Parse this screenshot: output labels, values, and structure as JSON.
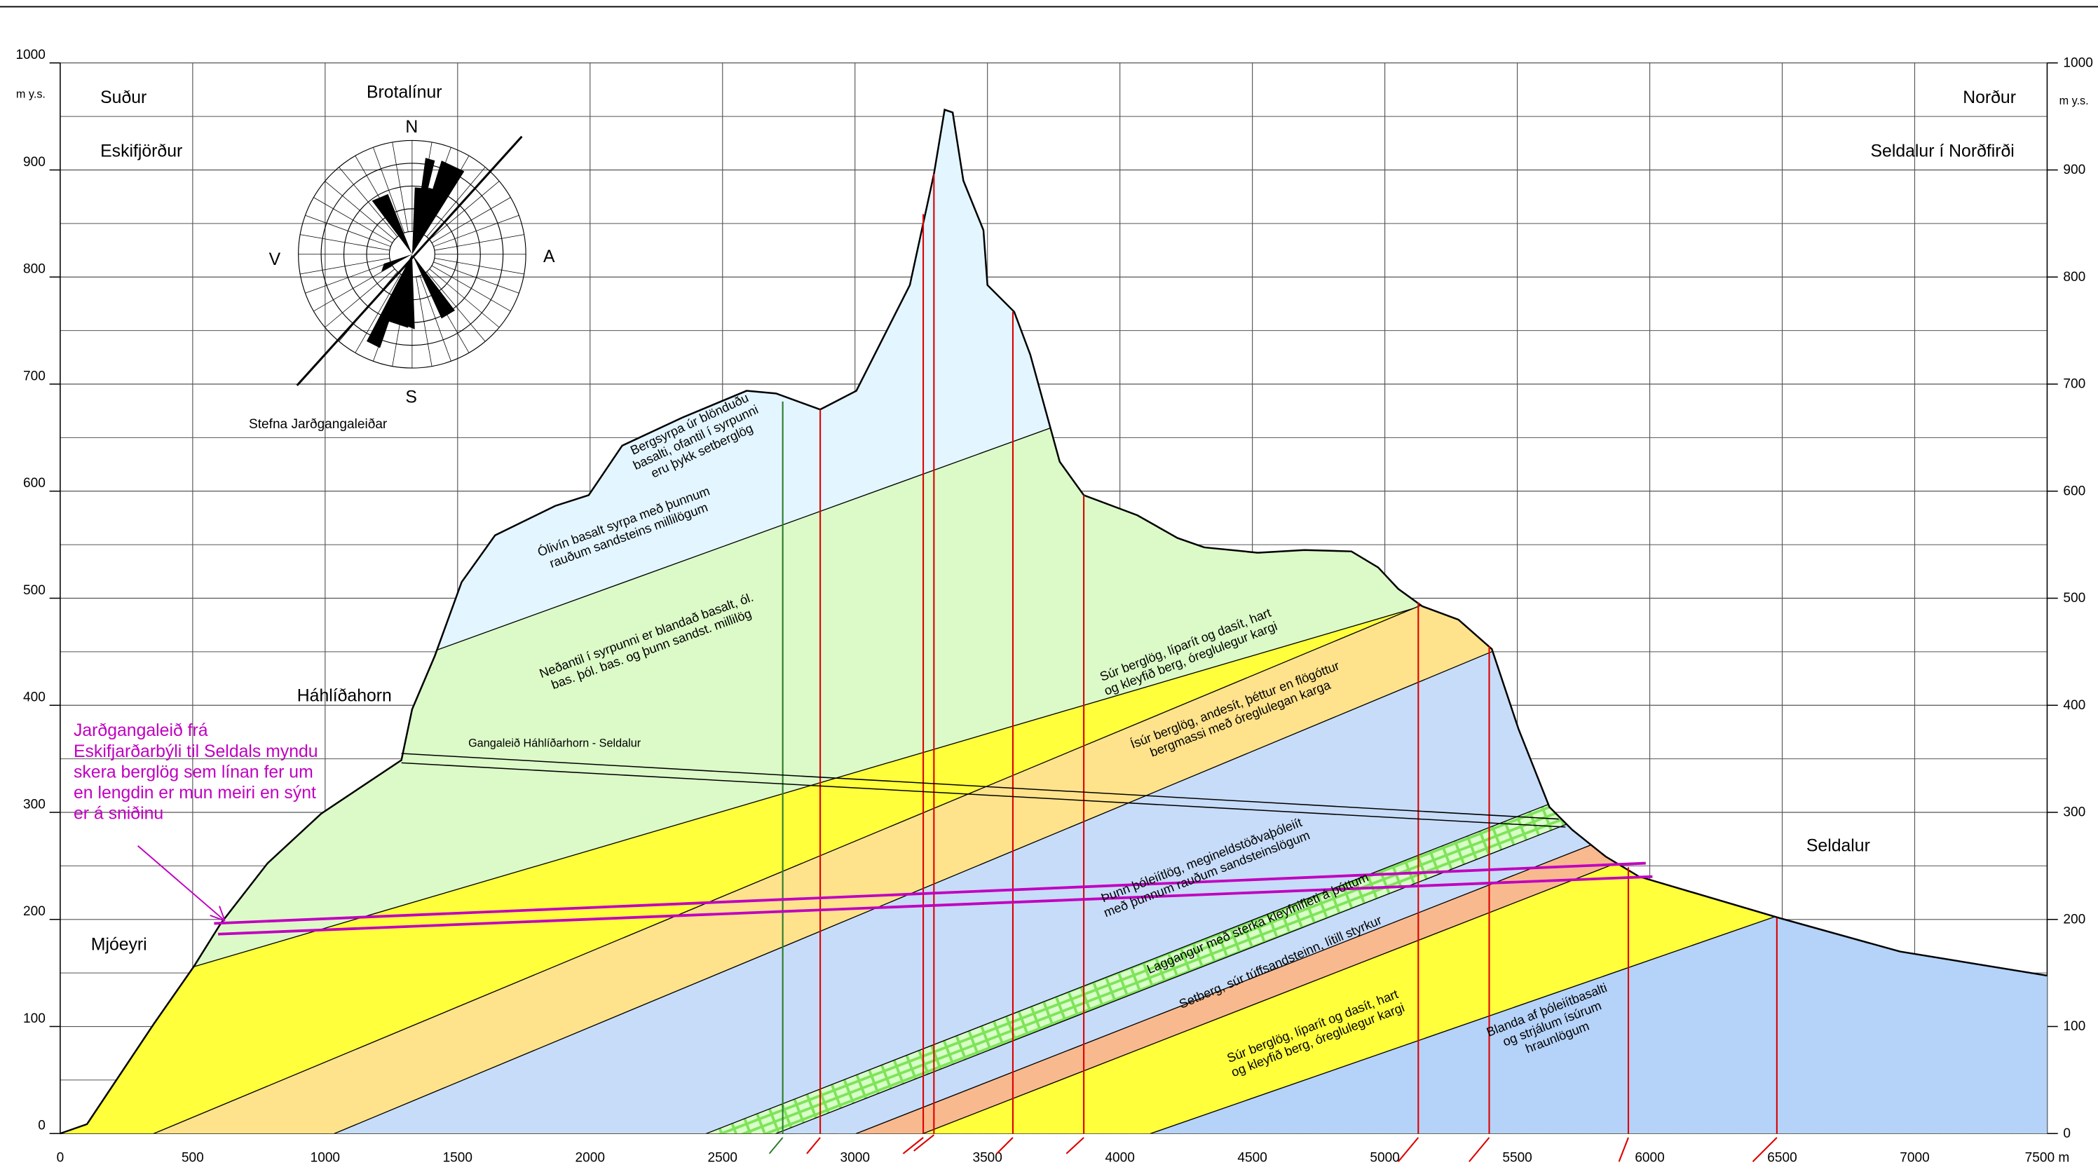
{
  "axes": {
    "x_ticks": [
      0,
      500,
      1000,
      1500,
      2000,
      2500,
      3000,
      3500,
      4000,
      4500,
      5000,
      5500,
      6000,
      6500,
      7000,
      {
        "value": 7500,
        "label": "7500 m"
      }
    ],
    "y_ticks": [
      0,
      100,
      200,
      300,
      400,
      500,
      600,
      700,
      800,
      900,
      1000
    ],
    "y_unit": "m y.s."
  },
  "labels": {
    "south": "Suður",
    "north": "Norður",
    "west_place": "Eskifjörður",
    "east_place": "Seldalur í Norðfirði",
    "rose_title": "Brotalínur",
    "rose_n": "N",
    "rose_s": "S",
    "rose_w": "V",
    "rose_e": "A",
    "tunnel_direction": "Stefna Jarðgangaleiðar",
    "hahlidahorn": "Háhlíðahorn",
    "mjoeyri": "Mjóeyri",
    "seldalur": "Seldalur",
    "tunnel": "Gangaleið Háhlíðarhorn - Seldalur"
  },
  "note": [
    "Jarðgangaleið frá",
    "Eskifjarðarbýli til Seldals myndu",
    "skera berglög sem línan fer um",
    "en lengdin er mun meiri en sýnt",
    "er á sniðinu"
  ],
  "layers": [
    {
      "lines": [
        "Bergsyrpa úr blönduðu",
        "basalti, ofantil í syrpunni",
        "eru þykk setberglög"
      ]
    },
    {
      "lines": [
        "Ólivín basalt syrpa með þunnum",
        "rauðum sandsteins millilögum"
      ]
    },
    {
      "lines": [
        "Neðantil í syrpunni er blandað basalt, ól.",
        "bas. þól. bas. og þunn sandst. millilög"
      ]
    },
    {
      "lines": [
        "Súr berglög, líparít og dasít, hart",
        "og kleyfið berg, óreglulegur kargi"
      ]
    },
    {
      "lines": [
        "Ísúr berglög, andesít, þéttur en flögóttur",
        "bergmassi með óreglulegan karga"
      ]
    },
    {
      "lines": [
        "Þunn þóleiítlög, megineldstöðvaþóleiít",
        "með þunnum rauðum sandsteinslögum"
      ]
    },
    {
      "lines": [
        "Laggangur með sterka kleyfnifleti á þóttum"
      ]
    },
    {
      "lines": [
        "Setberg, súr túffsandsteinn, lítill styrkur"
      ]
    },
    {
      "lines": [
        "Súr berglög, líparít og dasít, hart",
        "og kleyfið berg, óreglulegur kargi"
      ]
    },
    {
      "lines": [
        "Blanda af þóleiítbasalti",
        "og strjálum ísúrum",
        "hraunlögum"
      ]
    }
  ]
}
